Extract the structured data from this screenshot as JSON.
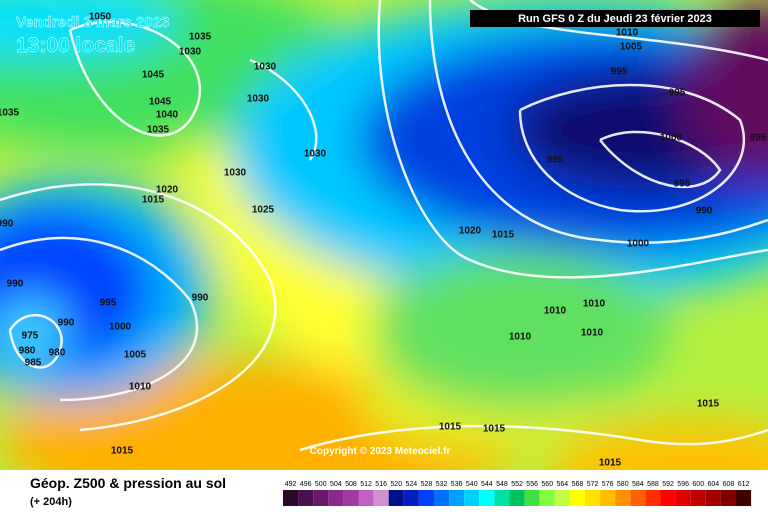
{
  "header": {
    "date": "Vendredi 3 mars 2023",
    "time": "13:00 locale",
    "run": "Run GFS 0 Z du Jeudi 23 février 2023"
  },
  "copyright": "Copyright © 2023 Meteociel.fr",
  "footer": {
    "title": "Géop. Z500 & pression au sol",
    "lead": "(+ 204h)"
  },
  "scale_labels": [
    492,
    496,
    500,
    504,
    508,
    512,
    516,
    520,
    524,
    528,
    532,
    536,
    540,
    544,
    548,
    552,
    556,
    560,
    564,
    568,
    572,
    576,
    580,
    584,
    588,
    592,
    596,
    600,
    604,
    608,
    612
  ],
  "scale_colors": [
    "#2a0a2a",
    "#4a1050",
    "#6a1a6a",
    "#8a2a8a",
    "#a03aa0",
    "#c060c0",
    "#d090d0",
    "#00108a",
    "#0020c0",
    "#0040ff",
    "#0070ff",
    "#00a0ff",
    "#00d0ff",
    "#00ffff",
    "#00e0a0",
    "#00c060",
    "#40e040",
    "#80ff40",
    "#c0ff40",
    "#ffff00",
    "#ffe000",
    "#ffc000",
    "#ff9000",
    "#ff6000",
    "#ff3000",
    "#ff0000",
    "#e00000",
    "#c00000",
    "#a00000",
    "#800000",
    "#400000"
  ],
  "isobar_labels": [
    1050,
    1035,
    1030,
    1030,
    1045,
    1030,
    1045,
    1040,
    1035,
    1035,
    1030,
    1030,
    1020,
    1015,
    1025,
    990,
    1020,
    1015,
    990,
    995,
    990,
    990,
    1000,
    975,
    980,
    985,
    980,
    1005,
    1010,
    1015,
    1015,
    1015,
    1015,
    1015,
    1010,
    1010,
    1010,
    1010,
    1000,
    990,
    995,
    995,
    1000,
    995,
    995,
    1005,
    1010,
    995
  ]
}
